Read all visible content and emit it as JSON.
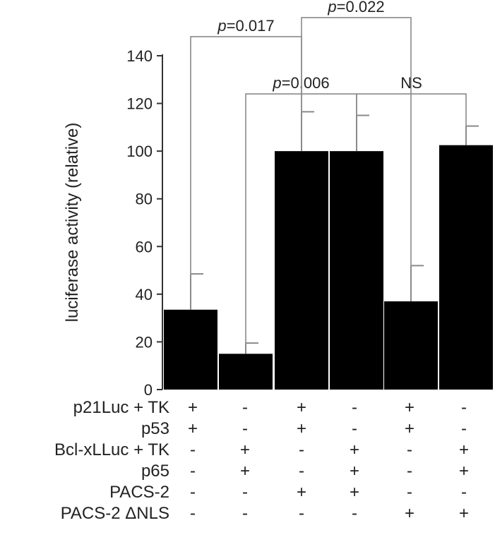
{
  "chart_data": {
    "type": "bar",
    "title": "",
    "ylabel": "luciferase activity (relative)",
    "ylim": [
      0,
      140
    ],
    "yticks": [
      0,
      20,
      40,
      60,
      80,
      100,
      120,
      140
    ],
    "grid": false,
    "legend": "none",
    "bar_color": "#000000",
    "values": [
      33.5,
      15,
      100,
      100,
      37,
      102.5
    ],
    "errors": [
      15,
      4.5,
      16.5,
      15,
      15,
      8
    ],
    "conditions": [
      {
        "label": "p21Luc + TK",
        "marks": [
          "+",
          "-",
          "+",
          "-",
          "+",
          "-"
        ]
      },
      {
        "label": "p53",
        "marks": [
          "+",
          "-",
          "+",
          "-",
          "+",
          "-"
        ]
      },
      {
        "label": "Bcl-xLLuc + TK",
        "marks": [
          "-",
          "+",
          "-",
          "+",
          "-",
          "+"
        ]
      },
      {
        "label": "p65",
        "marks": [
          "-",
          "+",
          "-",
          "+",
          "-",
          "+"
        ]
      },
      {
        "label": "PACS-2",
        "marks": [
          "-",
          "-",
          "+",
          "+",
          "-",
          "-"
        ]
      },
      {
        "label": "PACS-2 ΔNLS",
        "marks": [
          "-",
          "-",
          "-",
          "-",
          "+",
          "+"
        ]
      }
    ],
    "comparisons": [
      {
        "from": 0,
        "to": 2,
        "label_p": "p",
        "label_rest": "=0.017",
        "y": 148
      },
      {
        "from": 1,
        "to": 3,
        "label_p": "p",
        "label_rest": "=0.006",
        "y": 124
      },
      {
        "from": 2,
        "to": 4,
        "label_p": "p",
        "label_rest": "=0.022",
        "y": 156
      },
      {
        "from": 3,
        "to": 5,
        "label_p": "",
        "label_rest": "NS",
        "y": 124
      }
    ]
  }
}
